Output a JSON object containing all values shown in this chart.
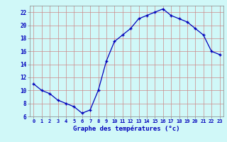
{
  "hours": [
    0,
    1,
    2,
    3,
    4,
    5,
    6,
    7,
    8,
    9,
    10,
    11,
    12,
    13,
    14,
    15,
    16,
    17,
    18,
    19,
    20,
    21,
    22,
    23
  ],
  "temps": [
    11,
    10,
    9.5,
    8.5,
    8,
    7.5,
    6.5,
    7,
    10,
    14.5,
    17.5,
    18.5,
    19.5,
    21,
    21.5,
    22,
    22.5,
    21.5,
    21,
    20.5,
    19.5,
    18.5,
    16,
    15.5
  ],
  "line_color": "#0000bb",
  "marker": "+",
  "bg_color": "#d0f8f8",
  "grid_major_color": "#cc8888",
  "grid_minor_color": "#ccdddd",
  "xlabel": "Graphe des températures (°c)",
  "xlabel_color": "#0000bb",
  "tick_color": "#0000bb",
  "ylim": [
    6,
    23
  ],
  "xlim": [
    -0.5,
    23.5
  ],
  "yticks": [
    6,
    8,
    10,
    12,
    14,
    16,
    18,
    20,
    22
  ],
  "xticks": [
    0,
    1,
    2,
    3,
    4,
    5,
    6,
    7,
    8,
    9,
    10,
    11,
    12,
    13,
    14,
    15,
    16,
    17,
    18,
    19,
    20,
    21,
    22,
    23
  ]
}
